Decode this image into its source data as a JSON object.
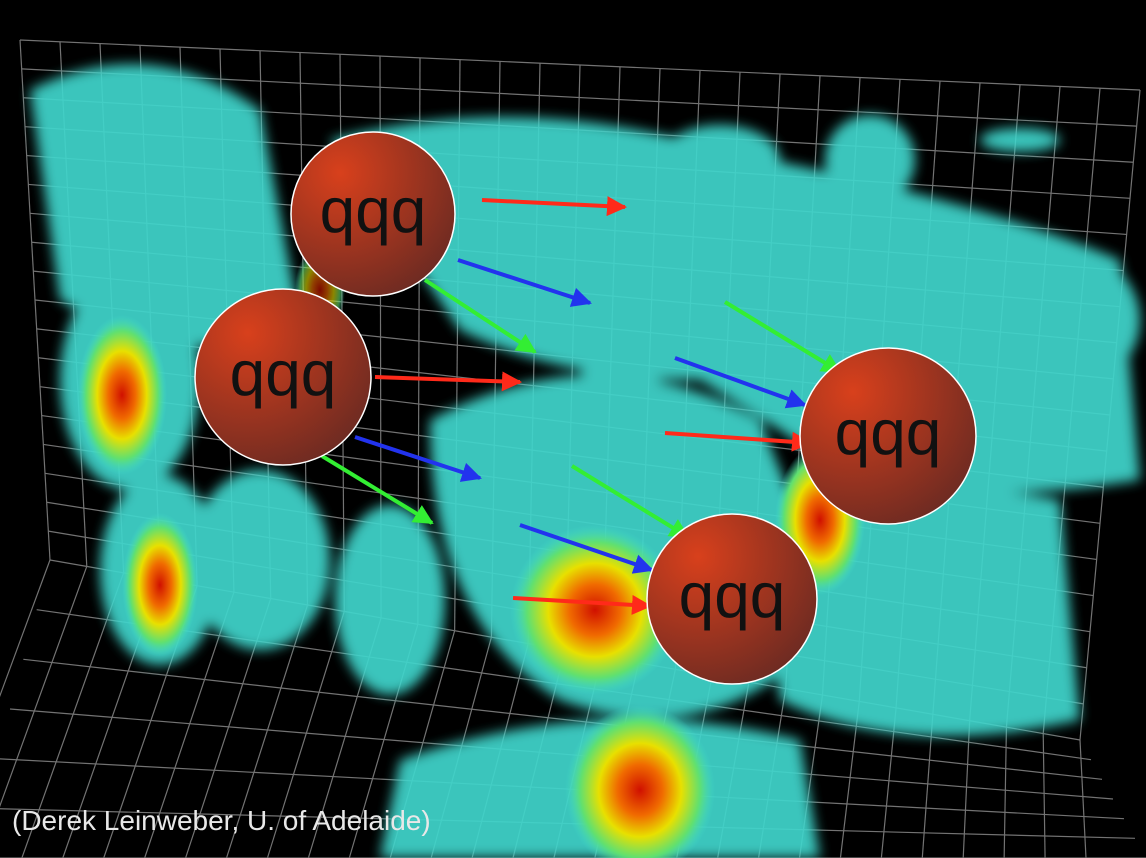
{
  "nodes": [
    {
      "label": "qqq"
    },
    {
      "label": "qqq"
    },
    {
      "label": "qqq"
    },
    {
      "label": "qqq"
    }
  ],
  "caption": "(Derek Leinweber, U. of Adelaide)"
}
